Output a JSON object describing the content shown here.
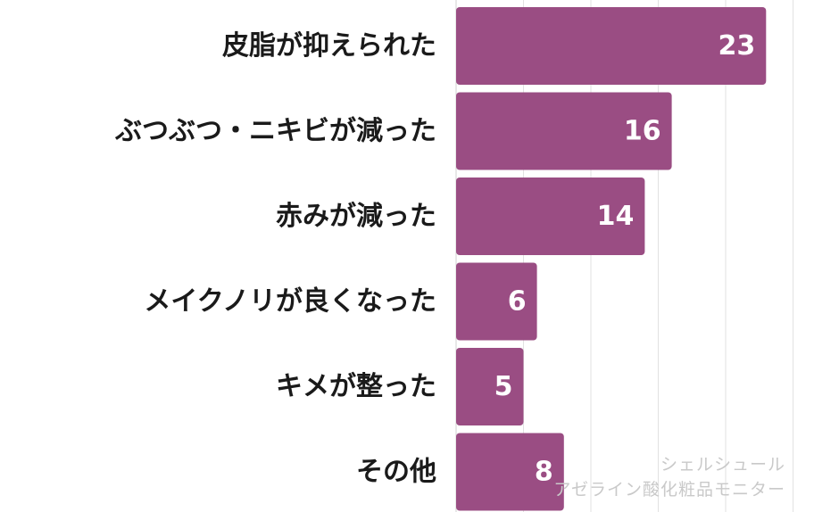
{
  "chart_data": {
    "type": "bar",
    "orientation": "horizontal",
    "categories": [
      "皮脂が抑えられた",
      "ぶつぶつ・ニキビが減った",
      "赤みが減った",
      "メイクノリが良くなった",
      "キメが整った",
      "その他"
    ],
    "values": [
      23,
      16,
      14,
      6,
      5,
      8
    ],
    "xlim": [
      0,
      25
    ],
    "grid": true,
    "bar_color": "#9a4d83"
  },
  "watermark": {
    "line1": "シェルシュール",
    "line2": "アゼライン酸化粧品モニター"
  }
}
